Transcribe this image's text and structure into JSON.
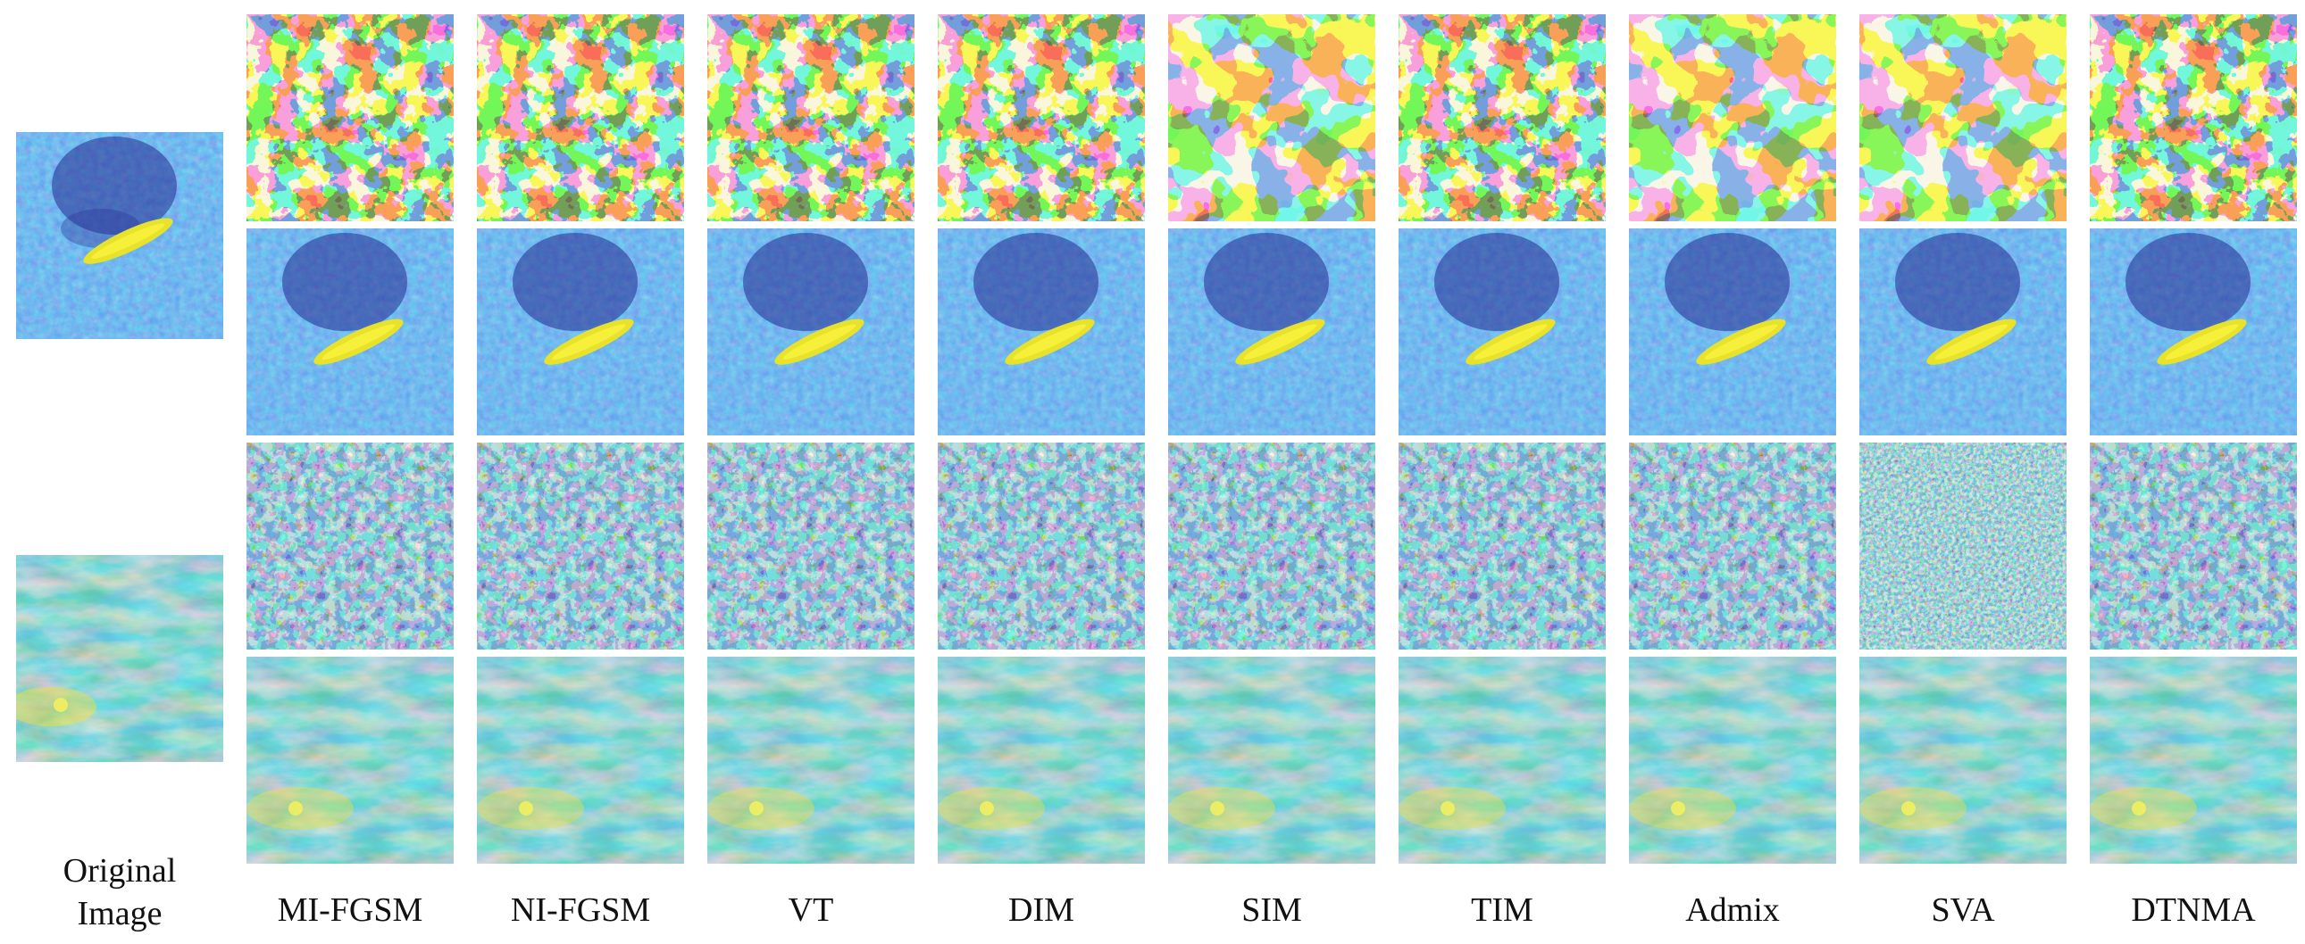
{
  "figure": {
    "original_label_line1": "Original",
    "original_label_line2": "Image",
    "methods": [
      "MI-FGSM",
      "NI-FGSM",
      "VT",
      "DIM",
      "SIM",
      "TIM",
      "Admix",
      "SVA",
      "DTNMA"
    ],
    "rows": [
      "perturbation-ship",
      "adversarial-ship",
      "perturbation-terrain",
      "adversarial-terrain"
    ]
  },
  "colors": {
    "dark_blue": "#2a2aa0",
    "blue": "#2a6fd6",
    "teal": "#25a8c0",
    "yellow": "#f2ea1a",
    "green": "#8cc84b"
  }
}
